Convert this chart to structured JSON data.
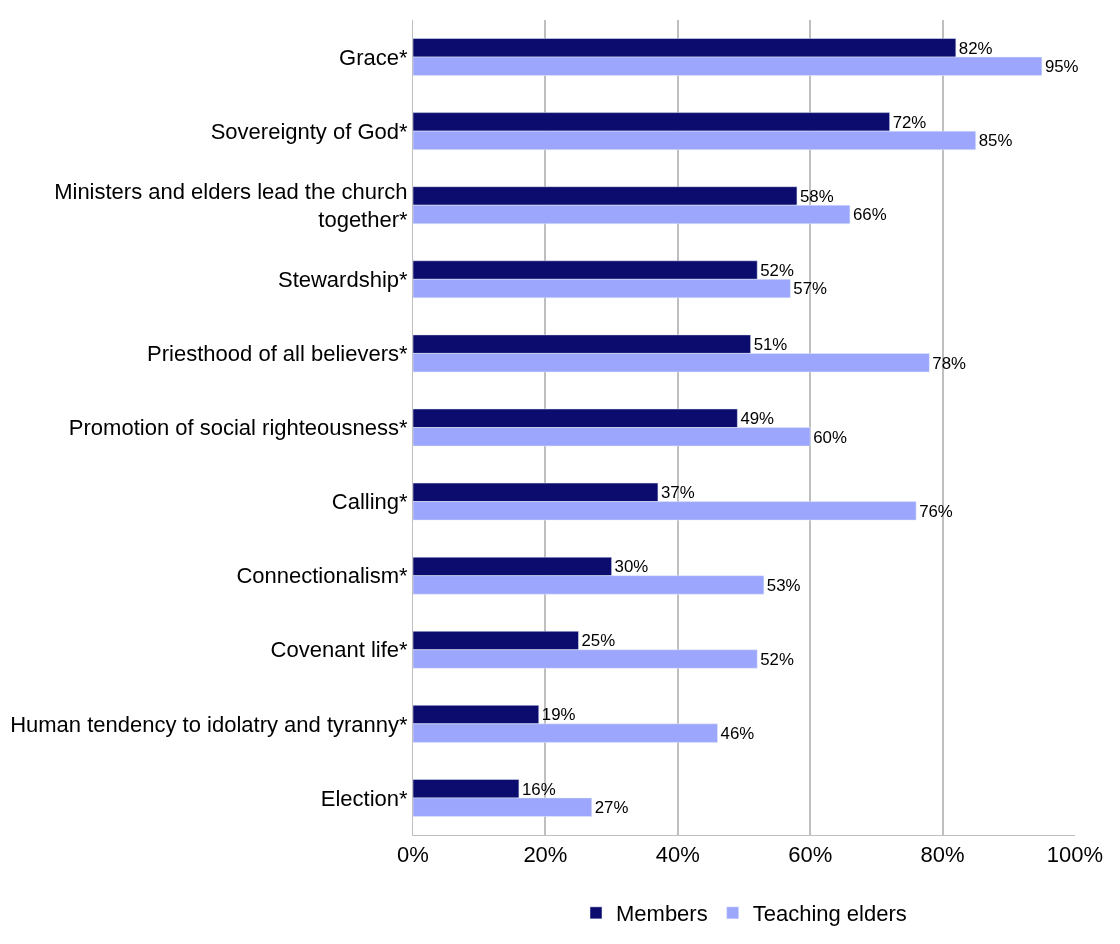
{
  "chart_data": {
    "type": "bar",
    "orientation": "horizontal",
    "categories": [
      "Grace*",
      "Sovereignty of God*",
      "Ministers and elders lead the church together*",
      "Stewardship*",
      "Priesthood of all believers*",
      "Promotion of social righteousness*",
      "Calling*",
      "Connectionalism*",
      "Covenant life*",
      "Human tendency to idolatry and tyranny*",
      "Election*"
    ],
    "series": [
      {
        "name": "Members",
        "color": "#0c0c6e",
        "values": [
          82,
          72,
          58,
          52,
          51,
          49,
          37,
          30,
          25,
          19,
          16
        ],
        "value_labels": [
          "82%",
          "72%",
          "58%",
          "52%",
          "51%",
          "49%",
          "37%",
          "30%",
          "25%",
          "19%",
          "16%"
        ]
      },
      {
        "name": "Teaching elders",
        "color": "#9ca6fc",
        "values": [
          95,
          85,
          66,
          57,
          78,
          60,
          76,
          53,
          52,
          46,
          27
        ],
        "value_labels": [
          "95%",
          "85%",
          "66%",
          "57%",
          "78%",
          "60%",
          "76%",
          "53%",
          "52%",
          "46%",
          "27%"
        ]
      }
    ],
    "xlim": [
      0,
      100
    ],
    "xticks": [
      {
        "value": 0,
        "label": "0%"
      },
      {
        "value": 20,
        "label": "20%"
      },
      {
        "value": 40,
        "label": "40%"
      },
      {
        "value": 60,
        "label": "60%"
      },
      {
        "value": 80,
        "label": "80%"
      },
      {
        "value": 100,
        "label": "100%"
      }
    ],
    "grid": "x",
    "legend": "bottom"
  }
}
